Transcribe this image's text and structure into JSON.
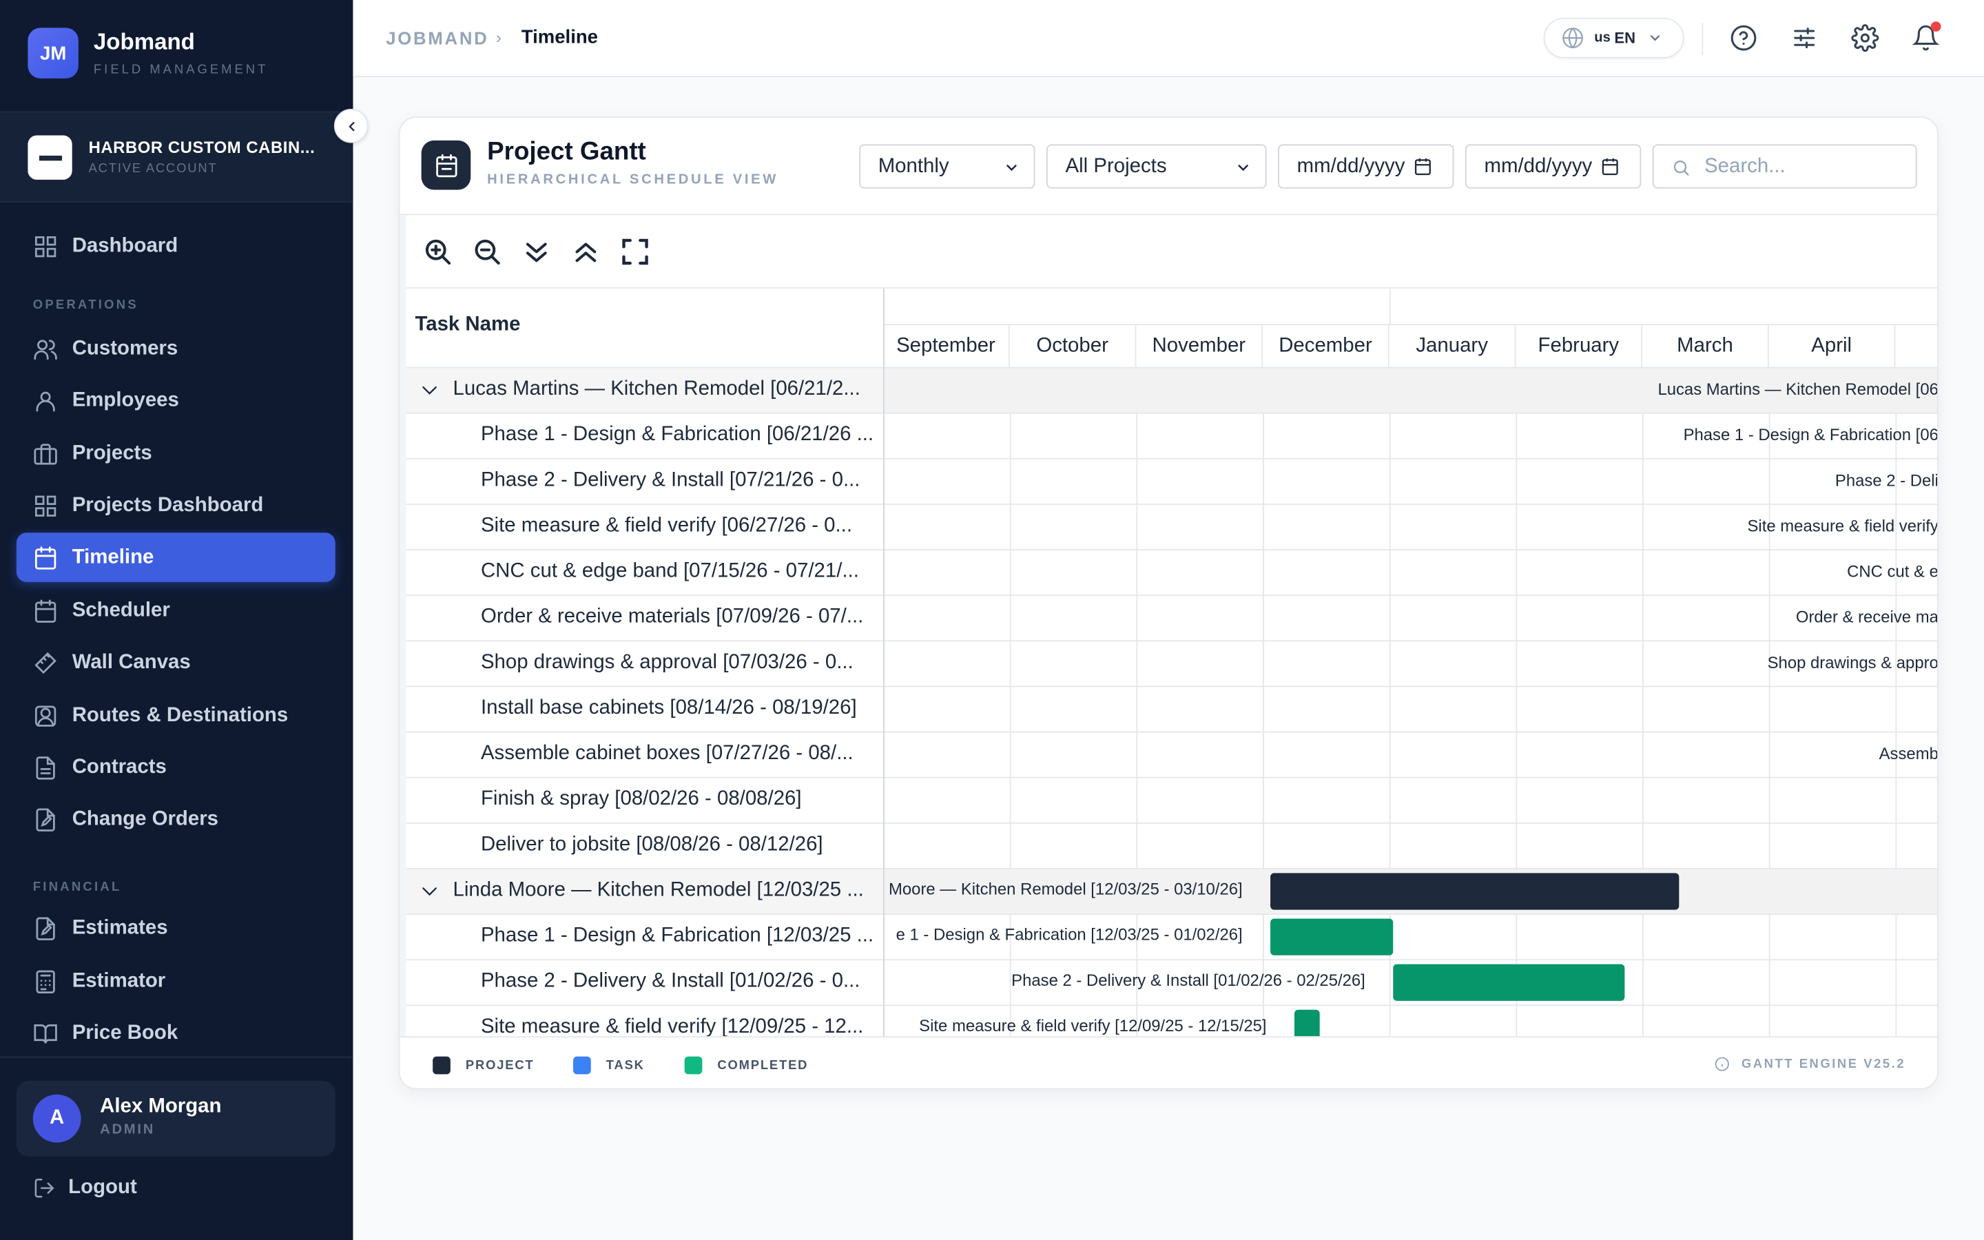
{
  "brand": {
    "logo": "JM",
    "name": "Jobmand",
    "sub": "FIELD MANAGEMENT"
  },
  "account": {
    "name": "HARBOR CUSTOM CABIN...",
    "status": "ACTIVE ACCOUNT"
  },
  "nav": {
    "dashboard": "Dashboard",
    "section_operations": "OPERATIONS",
    "customers": "Customers",
    "employees": "Employees",
    "projects": "Projects",
    "projects_dashboard": "Projects Dashboard",
    "timeline": "Timeline",
    "scheduler": "Scheduler",
    "wall_canvas": "Wall Canvas",
    "routes": "Routes & Destinations",
    "contracts": "Contracts",
    "change_orders": "Change Orders",
    "section_financial": "FINANCIAL",
    "estimates": "Estimates",
    "estimator": "Estimator",
    "price_book": "Price Book"
  },
  "user": {
    "initial": "A",
    "name": "Alex Morgan",
    "role": "ADMIN",
    "logout": "Logout"
  },
  "breadcrumb": {
    "root": "JOBMAND",
    "sep": "›",
    "current": "Timeline"
  },
  "lang": {
    "flag": "us",
    "code": "EN"
  },
  "card": {
    "title": "Project Gantt",
    "subtitle": "HIERARCHICAL SCHEDULE VIEW",
    "scale_select": "Monthly",
    "project_select": "All Projects",
    "date_from": "mm/dd/yyyy",
    "date_to": "mm/dd/yyyy",
    "search_placeholder": "Search..."
  },
  "grid": {
    "column": "Task Name",
    "rows": [
      "Lucas Martins — Kitchen Remodel [06/21/2...",
      "Phase 1 - Design & Fabrication [06/21/26 ...",
      "Phase 2 - Delivery & Install [07/21/26 - 0...",
      "Site measure & field verify [06/27/26 - 0...",
      "CNC cut & edge band [07/15/26 - 07/21/...",
      "Order & receive materials [07/09/26 - 07/...",
      "Shop drawings & approval [07/03/26 - 0...",
      "Install base cabinets [08/14/26 - 08/19/26]",
      "Assemble cabinet boxes [07/27/26 - 08/...",
      "Finish & spray [08/02/26 - 08/08/26]",
      "Deliver to jobsite [08/08/26 - 08/12/26]",
      "Linda Moore — Kitchen Remodel [12/03/25 ...",
      "Phase 1 - Design & Fabrication [12/03/25 ...",
      "Phase 2 - Delivery & Install [01/02/26 - 0...",
      "Site measure & field verify [12/09/25 - 12..."
    ]
  },
  "months": [
    "September",
    "October",
    "November",
    "December",
    "January",
    "February",
    "March",
    "April"
  ],
  "bar_labels": [
    "Lucas Martins — Kitchen Remodel [06",
    "Phase 1 - Design & Fabrication [06",
    "Phase 2 - Deli",
    "Site measure & field verify",
    "CNC cut & e",
    "Order & receive ma",
    "Shop drawings & appro",
    "Assemb",
    "Moore — Kitchen Remodel [12/03/25 - 03/10/26]",
    "e 1 - Design & Fabrication [12/03/25 - 01/02/26]",
    "Phase 2 - Delivery & Install [01/02/26 - 02/25/26]",
    "Site measure & field verify [12/09/25 - 12/15/25]"
  ],
  "legend": {
    "project": "PROJECT",
    "task": "TASK",
    "completed": "COMPLETED",
    "engine": "GANTT ENGINE V25.2"
  },
  "colors": {
    "project": "#1e293b",
    "task": "#3b82f6",
    "completed": "#10b981",
    "bar_completed": "#079669",
    "accent": "#3e5ee0"
  }
}
